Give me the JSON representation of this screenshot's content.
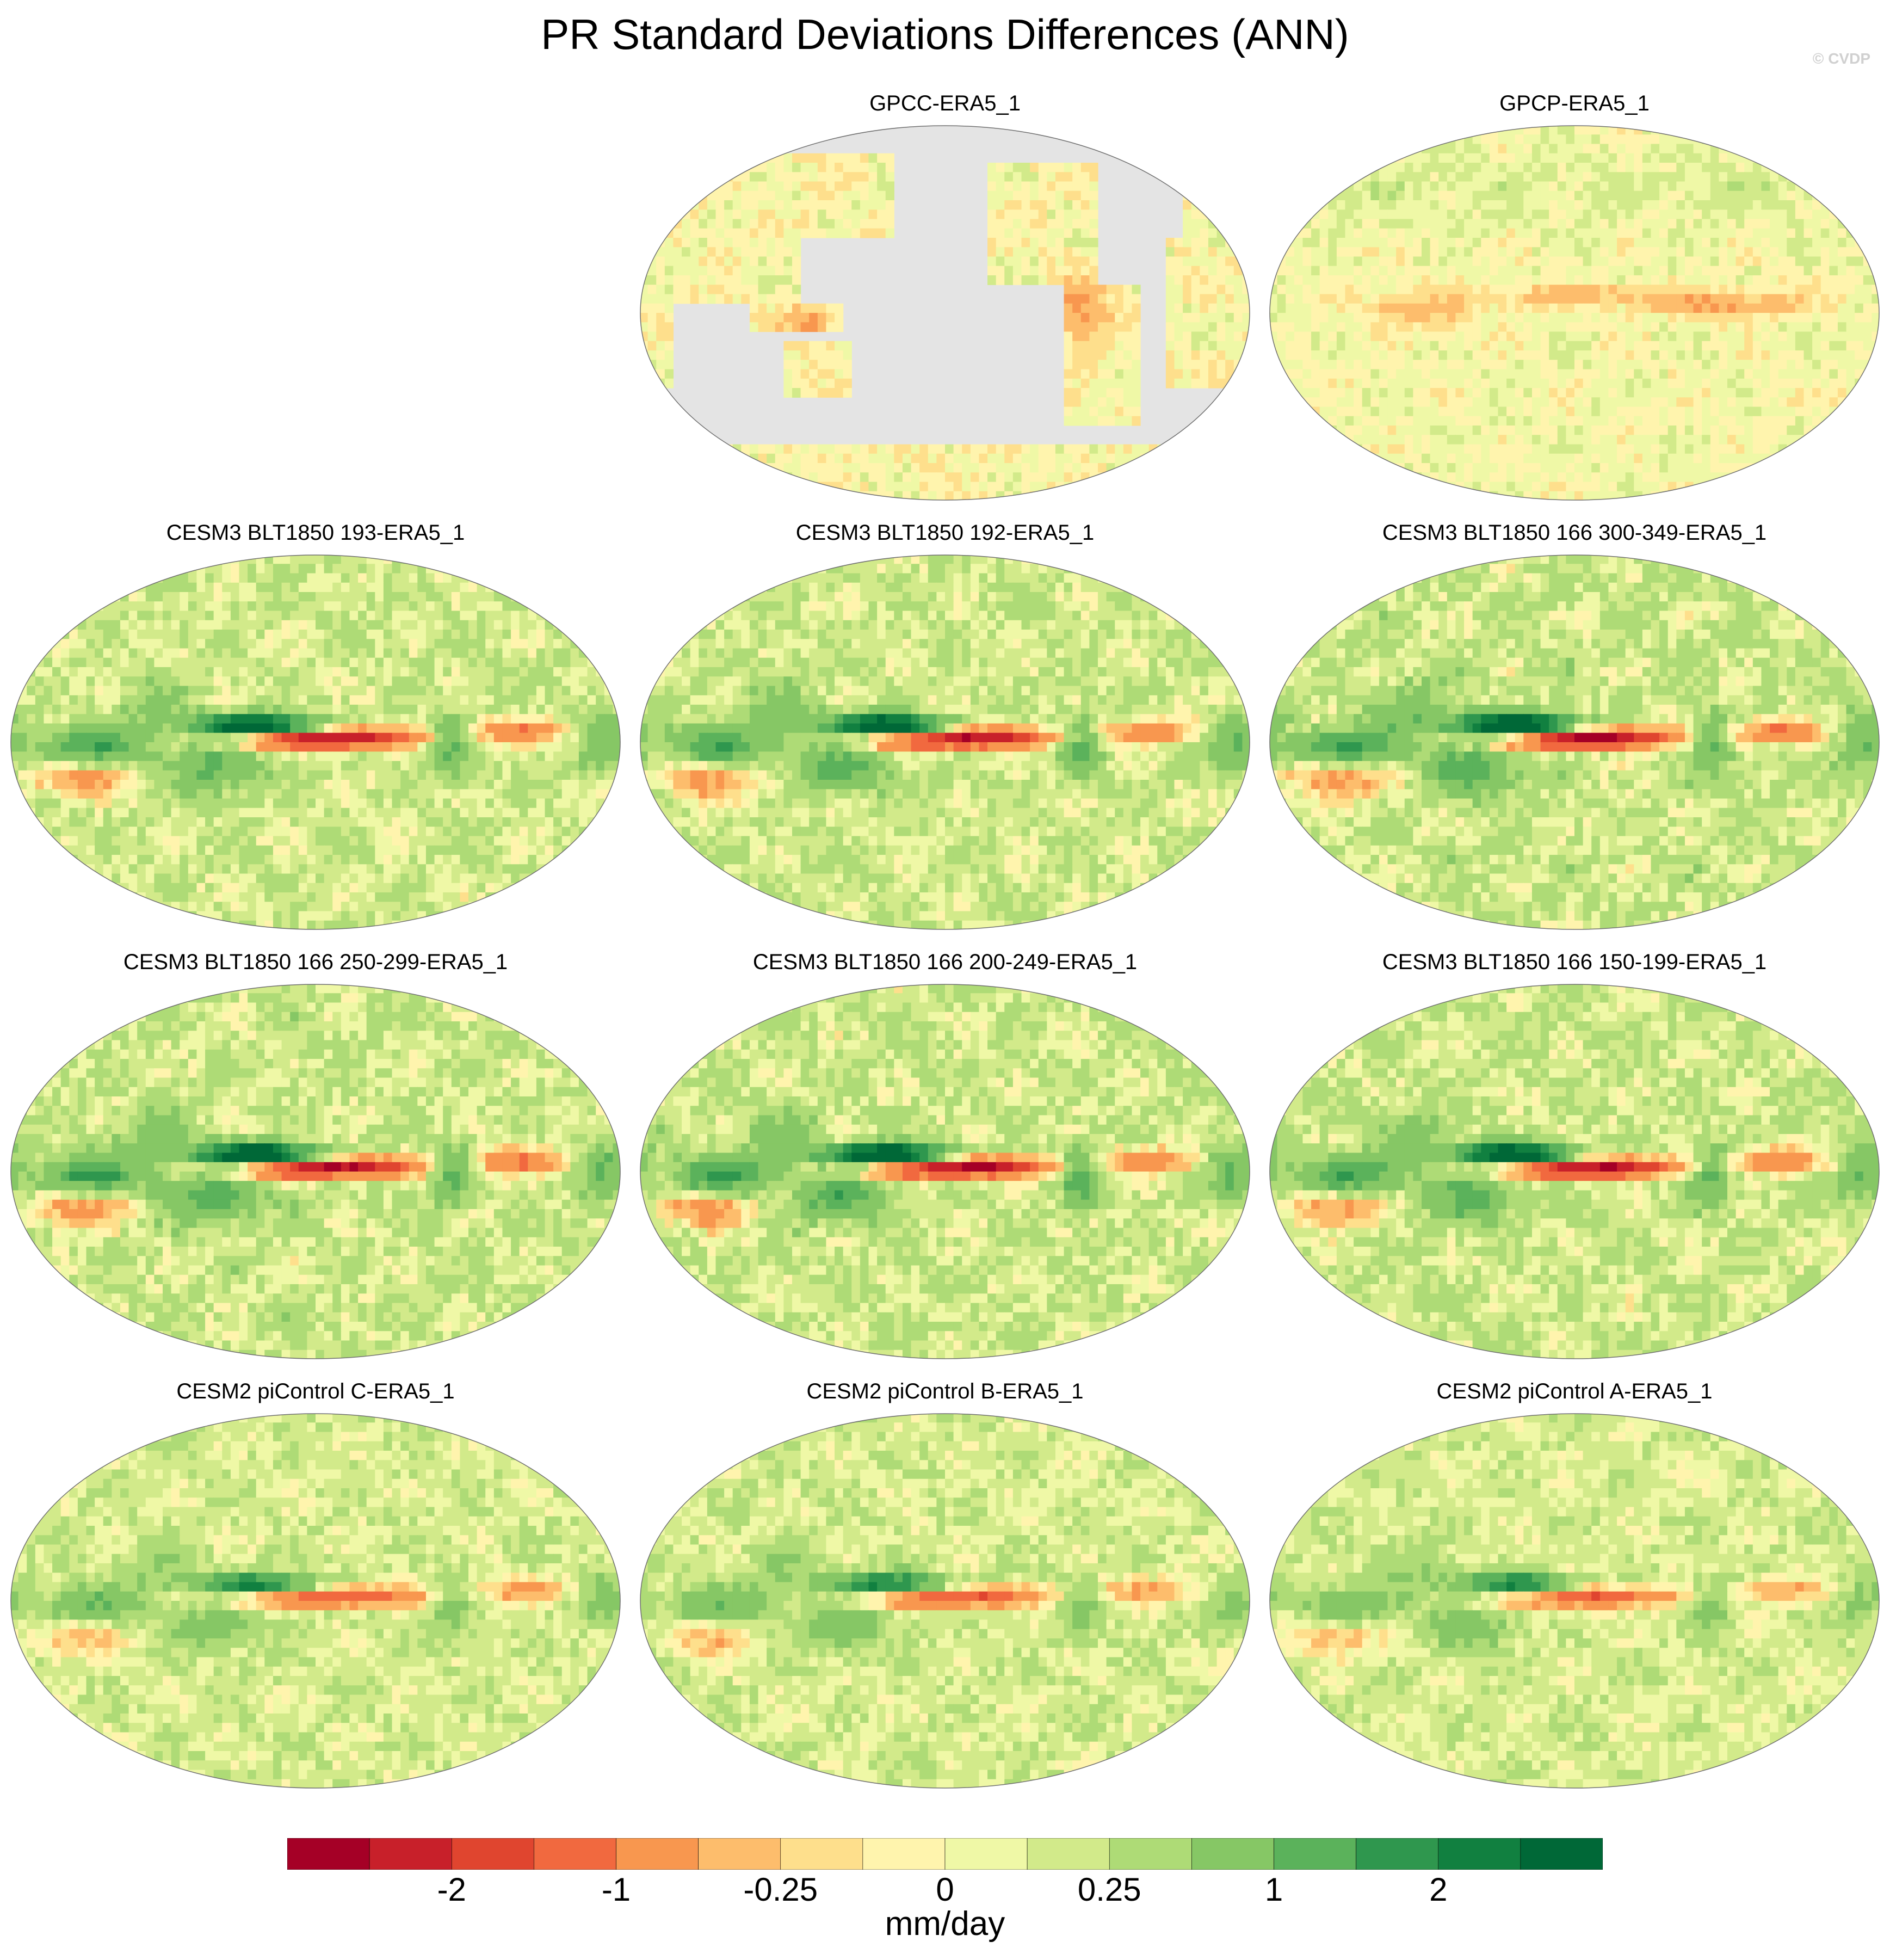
{
  "title": "PR Standard Deviations Differences (ANN)",
  "watermark": "© CVDP",
  "colors": {
    "land_missing": "#e4e4e4",
    "coastline": "#707070",
    "palette": [
      "#a50026",
      "#c8202a",
      "#e0452f",
      "#f1693f",
      "#f8974f",
      "#fdbd6c",
      "#fedf8c",
      "#fff4ad",
      "#eff8a6",
      "#d2ea8a",
      "#aedb76",
      "#86c765",
      "#5bb25b",
      "#2f974e",
      "#118040",
      "#006837"
    ]
  },
  "panels": [
    {
      "title": "GPCC-ERA5_1",
      "style": "land-only",
      "strength": 0.7
    },
    {
      "title": "GPCP-ERA5_1",
      "style": "gpcp",
      "strength": 0.6
    },
    {
      "title": "CESM3 BLT1850 193-ERA5_1",
      "style": "model",
      "strength": 1.0
    },
    {
      "title": "CESM3 BLT1850 192-ERA5_1",
      "style": "model",
      "strength": 1.0
    },
    {
      "title": "CESM3 BLT1850 166 300-349-ERA5_1",
      "style": "model",
      "strength": 1.15
    },
    {
      "title": "CESM3 BLT1850 166 250-299-ERA5_1",
      "style": "model",
      "strength": 1.1
    },
    {
      "title": "CESM3 BLT1850 166 200-249-ERA5_1",
      "style": "model",
      "strength": 1.1
    },
    {
      "title": "CESM3 BLT1850 166 150-199-ERA5_1",
      "style": "model",
      "strength": 1.05
    },
    {
      "title": "CESM2 piControl C-ERA5_1",
      "style": "cesm2",
      "strength": 0.85
    },
    {
      "title": "CESM2 piControl B-ERA5_1",
      "style": "cesm2",
      "strength": 0.85
    },
    {
      "title": "CESM2 piControl A-ERA5_1",
      "style": "cesm2",
      "strength": 0.8
    }
  ],
  "colorbar": {
    "levels": [
      -3,
      -2.5,
      -2,
      -1.5,
      -1,
      -0.5,
      -0.25,
      -0.1,
      0,
      0.1,
      0.25,
      0.5,
      1,
      1.5,
      2,
      2.5,
      3
    ],
    "labels": [
      {
        "text": "-2",
        "value": -2
      },
      {
        "text": "-1",
        "value": -1
      },
      {
        "text": "-0.25",
        "value": -0.25
      },
      {
        "text": "0",
        "value": 0
      },
      {
        "text": "0.25",
        "value": 0.25
      },
      {
        "text": "1",
        "value": 1
      },
      {
        "text": "2",
        "value": 2
      }
    ],
    "units": "mm/day"
  }
}
